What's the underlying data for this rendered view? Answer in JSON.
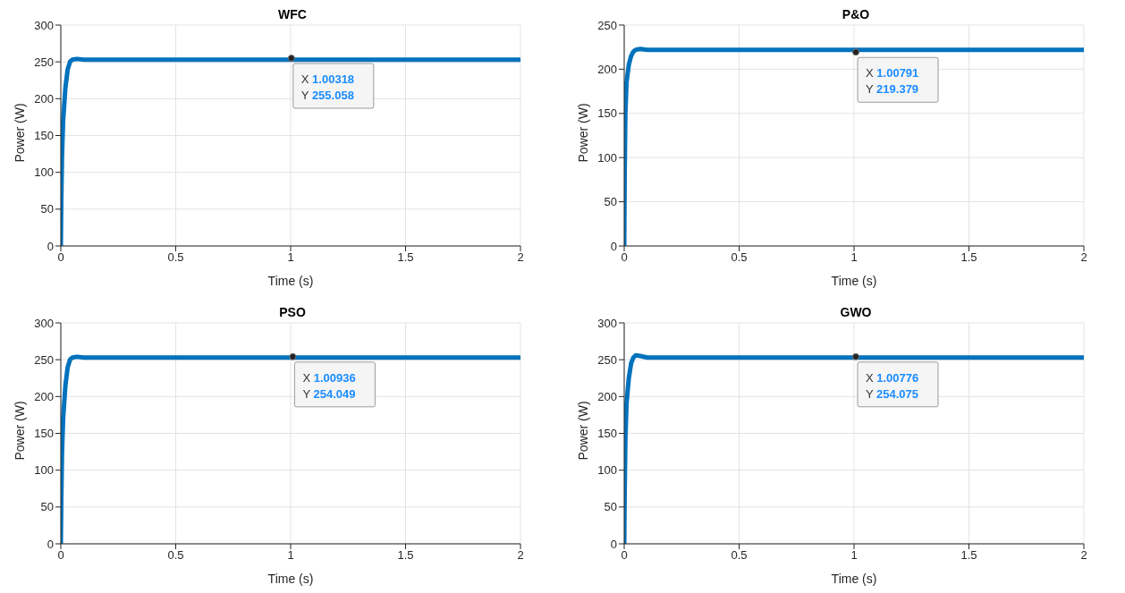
{
  "chart_data": [
    {
      "type": "line",
      "title": "WFC",
      "xlabel": "Time (s)",
      "ylabel": "Power (W)",
      "x": [
        0,
        0.002,
        0.005,
        0.01,
        0.02,
        0.03,
        0.04,
        0.05,
        0.07,
        0.1,
        0.5,
        1,
        1.5,
        2
      ],
      "series": [
        {
          "color": "#0072bd",
          "values": [
            0,
            60,
            120,
            170,
            215,
            240,
            250,
            253,
            254,
            253,
            253,
            253,
            253,
            253
          ]
        }
      ],
      "xlim": [
        0,
        2
      ],
      "xticks": [
        0,
        0.5,
        1,
        1.5,
        2
      ],
      "ylim": [
        0,
        300
      ],
      "yticks": [
        0,
        50,
        100,
        150,
        200,
        250,
        300
      ],
      "grid": true,
      "annotations": [
        {
          "text": "X 1.00318\nY 255.058",
          "x": 1.00318,
          "y": 255.058
        }
      ]
    },
    {
      "type": "line",
      "title": "P&O",
      "xlabel": "Time (s)",
      "ylabel": "Power (W)",
      "x": [
        0,
        0.002,
        0.005,
        0.01,
        0.02,
        0.03,
        0.04,
        0.05,
        0.07,
        0.1,
        0.5,
        1,
        1.5,
        2
      ],
      "series": [
        {
          "color": "#0072bd",
          "values": [
            0,
            80,
            150,
            185,
            205,
            215,
            220,
            222,
            223,
            222,
            222,
            222,
            222,
            222
          ]
        }
      ],
      "xlim": [
        0,
        2
      ],
      "xticks": [
        0,
        0.5,
        1,
        1.5,
        2
      ],
      "ylim": [
        0,
        250
      ],
      "yticks": [
        0,
        50,
        100,
        150,
        200,
        250
      ],
      "grid": true,
      "annotations": [
        {
          "text": "X 1.00791\nY 219.379",
          "x": 1.00791,
          "y": 219.379
        }
      ]
    },
    {
      "type": "line",
      "title": "PSO",
      "xlabel": "Time (s)",
      "ylabel": "Power (W)",
      "x": [
        0,
        0.002,
        0.005,
        0.01,
        0.02,
        0.03,
        0.04,
        0.05,
        0.07,
        0.1,
        0.5,
        1,
        1.5,
        2
      ],
      "series": [
        {
          "color": "#0072bd",
          "values": [
            0,
            60,
            120,
            170,
            215,
            240,
            250,
            253,
            254,
            253,
            253,
            253,
            253,
            253
          ]
        }
      ],
      "xlim": [
        0,
        2
      ],
      "xticks": [
        0,
        0.5,
        1,
        1.5,
        2
      ],
      "ylim": [
        0,
        300
      ],
      "yticks": [
        0,
        50,
        100,
        150,
        200,
        250,
        300
      ],
      "grid": true,
      "annotations": [
        {
          "text": "X 1.00936\nY 254.049",
          "x": 1.00936,
          "y": 254.049
        }
      ]
    },
    {
      "type": "line",
      "title": "GWO",
      "xlabel": "Time (s)",
      "ylabel": "Power (W)",
      "x": [
        0,
        0.002,
        0.005,
        0.01,
        0.02,
        0.03,
        0.04,
        0.05,
        0.07,
        0.1,
        0.5,
        1,
        1.5,
        2
      ],
      "series": [
        {
          "color": "#0072bd",
          "values": [
            0,
            70,
            140,
            190,
            225,
            245,
            253,
            256,
            255,
            253,
            253,
            253,
            253,
            253
          ]
        }
      ],
      "xlim": [
        0,
        2
      ],
      "xticks": [
        0,
        0.5,
        1,
        1.5,
        2
      ],
      "ylim": [
        0,
        300
      ],
      "yticks": [
        0,
        50,
        100,
        150,
        200,
        250,
        300
      ],
      "grid": true,
      "annotations": [
        {
          "text": "X 1.00776\nY 254.075",
          "x": 1.00776,
          "y": 254.075
        }
      ]
    }
  ]
}
